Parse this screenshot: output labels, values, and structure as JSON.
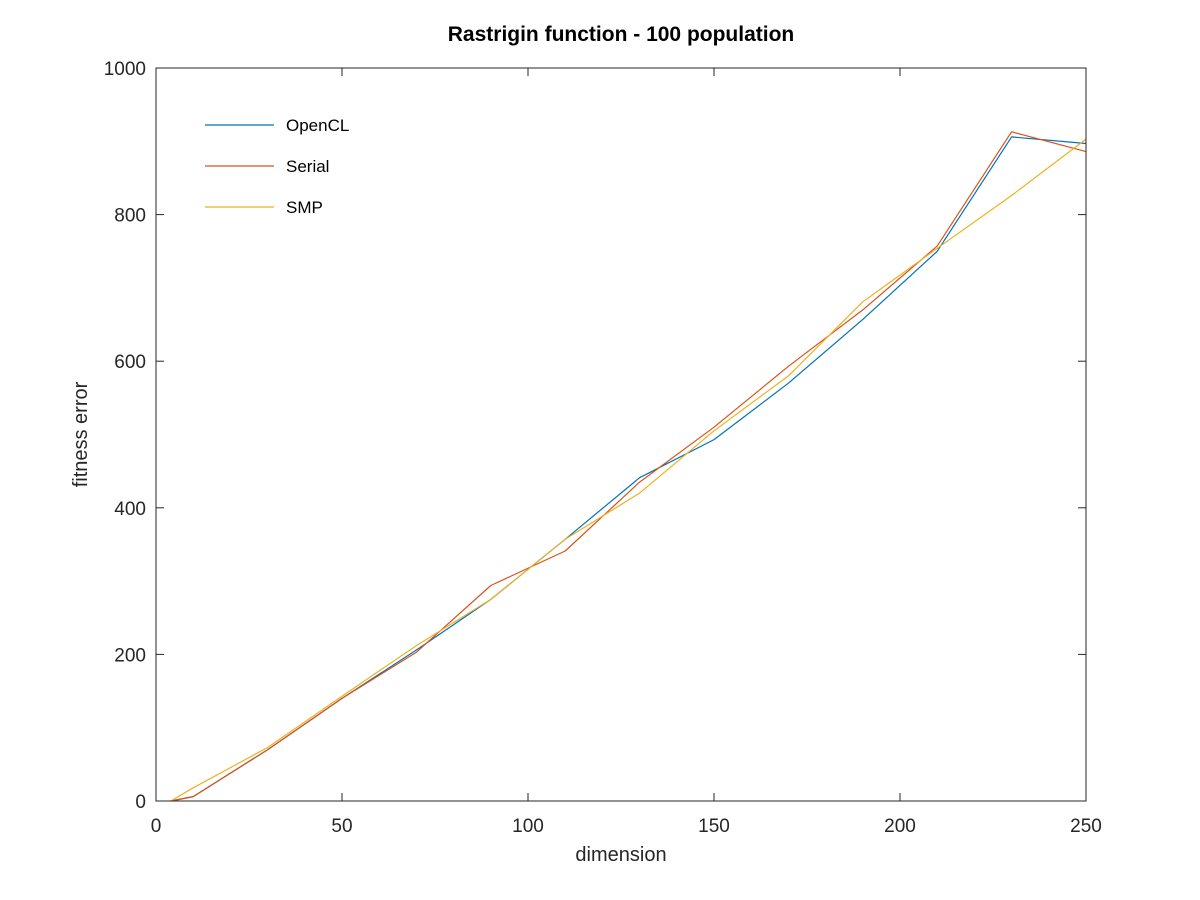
{
  "chart_data": {
    "type": "line",
    "title": "Rastrigin function - 100 population",
    "xlabel": "dimension",
    "ylabel": "fitness error",
    "xlim": [
      0,
      250
    ],
    "ylim": [
      0,
      1000
    ],
    "xticks": [
      0,
      50,
      100,
      150,
      200,
      250
    ],
    "yticks": [
      0,
      200,
      400,
      600,
      800,
      1000
    ],
    "grid": false,
    "legend_position": "top-left",
    "series": [
      {
        "name": "OpenCL",
        "color": "#0072bd",
        "x": [
          4,
          10,
          30,
          50,
          70,
          90,
          110,
          130,
          150,
          170,
          190,
          210,
          230,
          250
        ],
        "y": [
          0,
          6,
          70,
          140,
          206,
          275,
          357,
          441,
          493,
          570,
          657,
          750,
          906,
          897
        ]
      },
      {
        "name": "Serial",
        "color": "#d95319",
        "x": [
          4,
          10,
          30,
          50,
          70,
          90,
          110,
          130,
          150,
          170,
          190,
          210,
          230,
          250
        ],
        "y": [
          0,
          6,
          70,
          140,
          203,
          294,
          341,
          435,
          510,
          593,
          670,
          757,
          913,
          886
        ]
      },
      {
        "name": "SMP",
        "color": "#edb120",
        "x": [
          4,
          10,
          30,
          50,
          70,
          90,
          110,
          130,
          150,
          170,
          190,
          210,
          230,
          250
        ],
        "y": [
          0,
          18,
          73,
          143,
          212,
          275,
          357,
          420,
          505,
          580,
          681,
          754,
          826,
          903
        ]
      }
    ]
  }
}
